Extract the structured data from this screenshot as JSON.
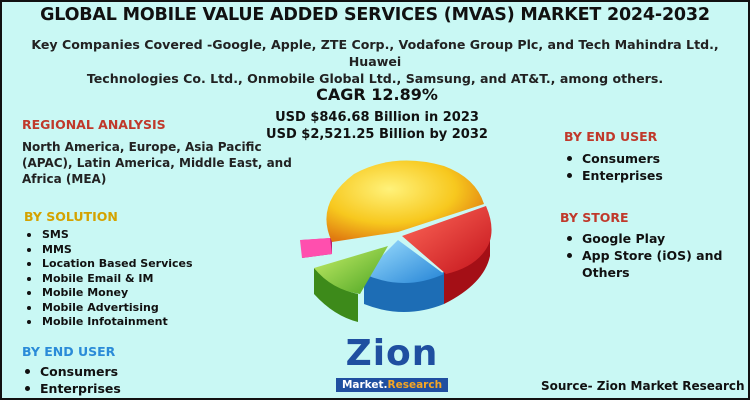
{
  "header": {
    "title": "GLOBAL MOBILE VALUE ADDED SERVICES (MVAS) MARKET 2024-2032",
    "subtitle_line1": "Key Companies Covered -Google, Apple, ZTE Corp., Vodafone Group Plc, and Tech Mahindra Ltd., Huawei",
    "subtitle_line2": "Technologies Co. Ltd., Onmobile Global Ltd., Samsung, and AT&T., among others."
  },
  "stats": {
    "cagr": "CAGR 12.89%",
    "value_2023": "USD $846.68 Billion in 2023",
    "value_2032": "USD $2,521.25 Billion by 2032"
  },
  "regional": {
    "heading": "REGIONAL ANALYSIS",
    "line1": "North America, Europe, Asia Pacific",
    "line2": "(APAC), Latin America, Middle East, and",
    "line3": "Africa (MEA)"
  },
  "by_solution": {
    "heading": "BY SOLUTION",
    "items": [
      "SMS",
      "MMS",
      "Location Based Services",
      "Mobile Email & IM",
      "Mobile Money",
      "Mobile Advertising",
      "Mobile Infotainment"
    ]
  },
  "by_end_user_left": {
    "heading": "BY END USER",
    "items": [
      "Consumers",
      "Enterprises"
    ]
  },
  "by_end_user_right": {
    "heading": "BY END USER",
    "items": [
      "Consumers",
      "Enterprises"
    ]
  },
  "by_store": {
    "heading": "BY STORE",
    "item1": "Google Play",
    "item2_line1": "App Store (iOS) and",
    "item2_line2": "Others"
  },
  "logo": {
    "name": "Zion",
    "sub_a": "Market.",
    "sub_b": "Research"
  },
  "source": "Source- Zion Market Research",
  "colors": {
    "background": "#c9f8f4",
    "heading_red": "#c0392b",
    "heading_yellow": "#d4a200",
    "heading_blue": "#2a8bd8",
    "logo_blue": "#1f4fa0"
  }
}
